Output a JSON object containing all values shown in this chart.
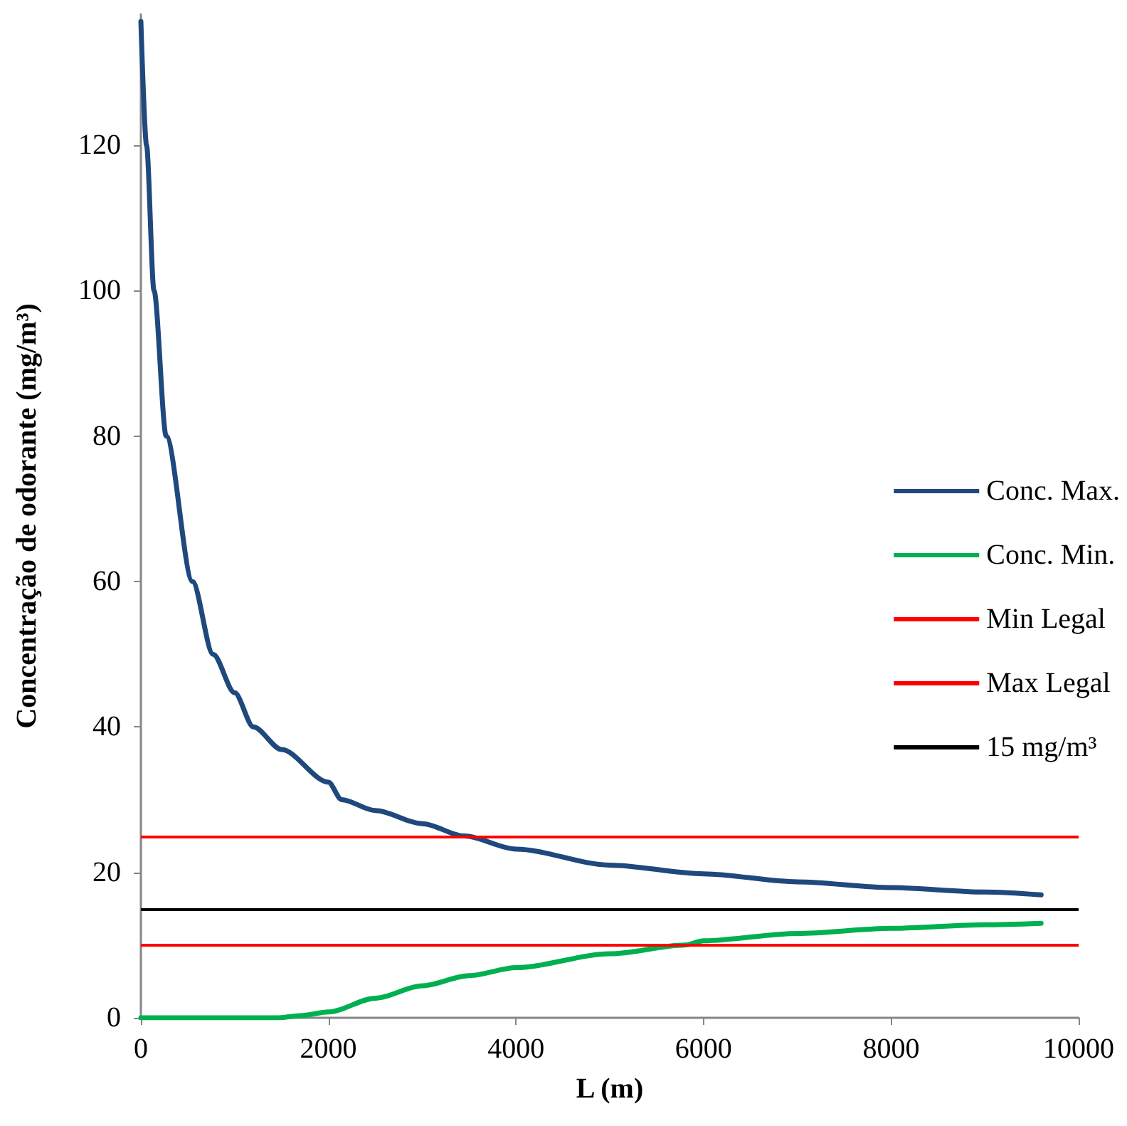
{
  "chart_data": {
    "type": "line",
    "xlabel": "L (m)",
    "ylabel": "Concentração de odorante (mg/m³)",
    "xlim": [
      0,
      10000
    ],
    "xticks": [
      0,
      2000,
      4000,
      6000,
      8000,
      10000
    ],
    "ylim": [
      0,
      138
    ],
    "yticks": [
      0,
      20,
      40,
      60,
      80,
      100,
      120
    ],
    "series": [
      {
        "name": "Conc. Max.",
        "color": "#1f497d",
        "x": [
          0,
          60,
          140,
          270,
          550,
          770,
          1000,
          1200,
          1500,
          2000,
          2140,
          2500,
          3000,
          3450,
          4000,
          5000,
          6000,
          7000,
          8000,
          9000,
          9600
        ],
        "values": [
          137,
          120,
          100,
          80,
          60,
          50,
          44.7,
          40,
          36.9,
          32.4,
          30,
          28.5,
          26.7,
          25,
          23.2,
          21,
          19.8,
          18.7,
          17.9,
          17.3,
          16.9
        ]
      },
      {
        "name": "Conc. Min.",
        "color": "#00b050",
        "x": [
          0,
          500,
          1000,
          1450,
          1700,
          2000,
          2500,
          3000,
          3500,
          4000,
          5000,
          5800,
          6000,
          7000,
          8000,
          9000,
          9600
        ],
        "values": [
          0,
          0,
          0,
          0,
          0.3,
          0.8,
          2.7,
          4.4,
          5.8,
          6.9,
          8.8,
          10,
          10.6,
          11.6,
          12.3,
          12.8,
          13
        ]
      }
    ],
    "ref_lines": [
      {
        "axis": "y",
        "value": 10,
        "label": "Min Legal",
        "color": "#ff0000"
      },
      {
        "axis": "y",
        "value": 25,
        "label": "Max Legal",
        "color": "#ff0000"
      },
      {
        "axis": "y",
        "value": 15,
        "label": "15 mg/m³",
        "color": "#000000"
      }
    ],
    "legend": "right",
    "grid": false,
    "marker": "none",
    "line_style": "solid"
  }
}
